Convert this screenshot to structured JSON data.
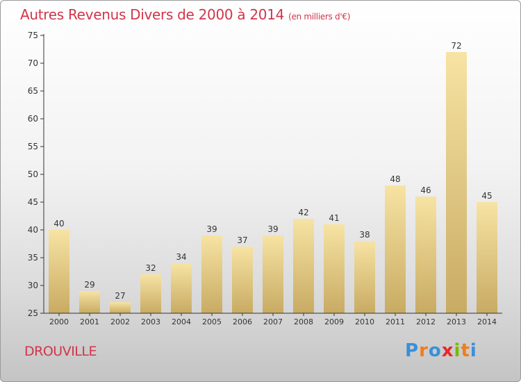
{
  "title": "Autres Revenus Divers de 2000 à 2014",
  "unit_note": "(en milliers d'€)",
  "commune": "DROUVILLE",
  "logo": {
    "letters": [
      "P",
      "r",
      "o",
      "x",
      "i",
      "t",
      "i"
    ],
    "colors": [
      "#3a8fd9",
      "#f07d1a",
      "#3a8fd9",
      "#e8262d",
      "#7ab800",
      "#f07d1a",
      "#3a8fd9"
    ]
  },
  "colors": {
    "bar_top": "#f7e3a3",
    "bar_bottom": "#c8ab63",
    "title": "#d1354a"
  },
  "chart_data": {
    "type": "bar",
    "categories": [
      "2000",
      "2001",
      "2002",
      "2003",
      "2004",
      "2005",
      "2006",
      "2007",
      "2008",
      "2009",
      "2010",
      "2011",
      "2012",
      "2013",
      "2014"
    ],
    "values": [
      40,
      29,
      27,
      32,
      34,
      39,
      37,
      39,
      42,
      41,
      38,
      48,
      46,
      72,
      45
    ],
    "ylim": [
      25,
      75
    ],
    "yticks": [
      25,
      30,
      35,
      40,
      45,
      50,
      55,
      60,
      65,
      70,
      75
    ],
    "xlabel": "",
    "ylabel": "",
    "grid": false
  }
}
